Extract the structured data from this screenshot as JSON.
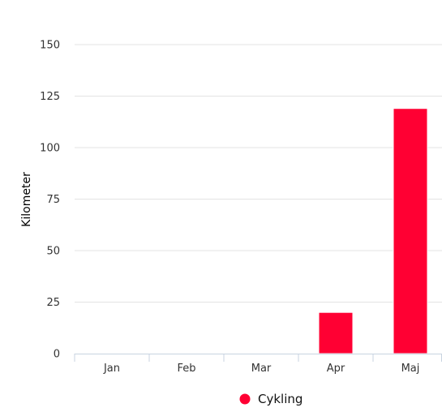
{
  "chart_data": {
    "type": "bar",
    "ylabel": "Kilometer",
    "categories": [
      "Jan",
      "Feb",
      "Mar",
      "Apr",
      "Maj"
    ],
    "series": [
      {
        "name": "Cykling",
        "values": [
          0,
          0,
          0,
          20,
          119
        ],
        "color": "#ff0033"
      }
    ],
    "ylim": [
      0,
      150
    ],
    "yticks": [
      0,
      25,
      50,
      75,
      100,
      125,
      150
    ],
    "grid": true,
    "legend_position": "bottom"
  }
}
